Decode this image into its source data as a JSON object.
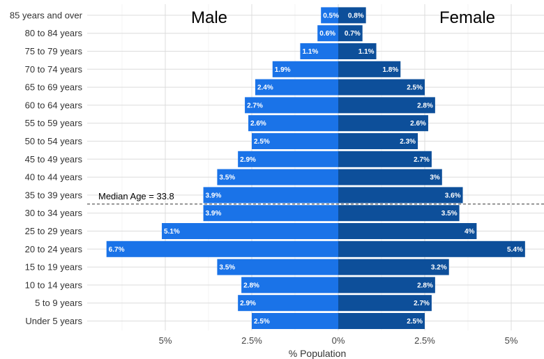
{
  "chart_data": {
    "type": "bar",
    "orientation": "horizontal",
    "categories": [
      "85 years and over",
      "80 to 84 years",
      "75 to 79 years",
      "70 to 74 years",
      "65 to 69 years",
      "60 to 64 years",
      "55 to 59 years",
      "50 to 54 years",
      "45 to 49 years",
      "40 to 44 years",
      "35 to 39 years",
      "30 to 34 years",
      "25 to 29 years",
      "20 to 24 years",
      "15 to 19 years",
      "10 to 14 years",
      "5 to 9 years",
      "Under 5 years"
    ],
    "series": [
      {
        "name": "Male",
        "color": "#1a73e8",
        "values": [
          0.5,
          0.6,
          1.1,
          1.9,
          2.4,
          2.7,
          2.6,
          2.5,
          2.9,
          3.5,
          3.9,
          3.9,
          5.1,
          6.7,
          3.5,
          2.8,
          2.9,
          2.5
        ],
        "labels": [
          "0.5%",
          "0.6%",
          "1.1%",
          "1.9%",
          "2.4%",
          "2.7%",
          "2.6%",
          "2.5%",
          "2.9%",
          "3.5%",
          "3.9%",
          "3.9%",
          "5.1%",
          "6.7%",
          "3.5%",
          "2.8%",
          "2.9%",
          "2.5%"
        ]
      },
      {
        "name": "Female",
        "color": "#0d4f9a",
        "values": [
          0.8,
          0.7,
          1.1,
          1.8,
          2.5,
          2.8,
          2.6,
          2.3,
          2.7,
          3.0,
          3.6,
          3.5,
          4.0,
          5.4,
          3.2,
          2.8,
          2.7,
          2.5
        ],
        "labels": [
          "0.8%",
          "0.7%",
          "1.1%",
          "1.8%",
          "2.5%",
          "2.8%",
          "2.6%",
          "2.3%",
          "2.7%",
          "3%",
          "3.6%",
          "3.5%",
          "4%",
          "5.4%",
          "3.2%",
          "2.8%",
          "2.7%",
          "2.5%"
        ]
      }
    ],
    "xlim": [
      -7.4,
      6.0
    ],
    "xticks": [
      -5,
      -2.5,
      0,
      2.5,
      5
    ],
    "xtick_labels": [
      "5%",
      "2.5%",
      "0%",
      "2.5%",
      "5%"
    ],
    "xlabel": "% Population",
    "ylabel": "",
    "title": "",
    "median": {
      "label": "Median Age = 33.8",
      "between": [
        "35 to 39 years",
        "30 to 34 years"
      ]
    },
    "grid": true
  }
}
